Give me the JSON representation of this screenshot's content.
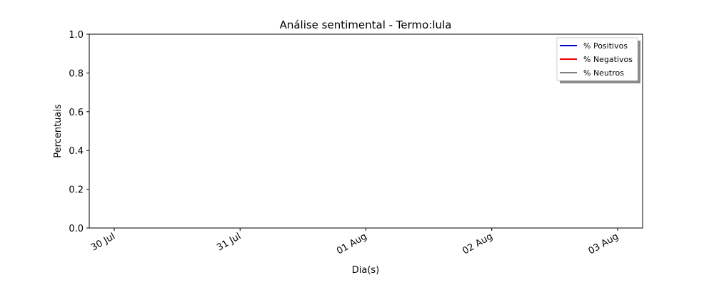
{
  "chart_data": {
    "type": "line",
    "title": "Análise sentimental - Termo:lula",
    "xlabel": "Dia(s)",
    "ylabel": "Percentuais",
    "ylim": [
      0.0,
      1.0
    ],
    "yticks": [
      "0.0",
      "0.2",
      "0.4",
      "0.6",
      "0.8",
      "1.0"
    ],
    "xticks": [
      "30 Jul",
      "31 Jul",
      "01 Aug",
      "02 Aug",
      "03 Aug"
    ],
    "grid": false,
    "legend_position": "top-right",
    "series": [
      {
        "name": "% Positivos",
        "color": "#0000cc",
        "values": []
      },
      {
        "name": "% Negativos",
        "color": "#ee0000",
        "values": []
      },
      {
        "name": "% Neutros",
        "color": "#808080",
        "values": []
      }
    ]
  }
}
